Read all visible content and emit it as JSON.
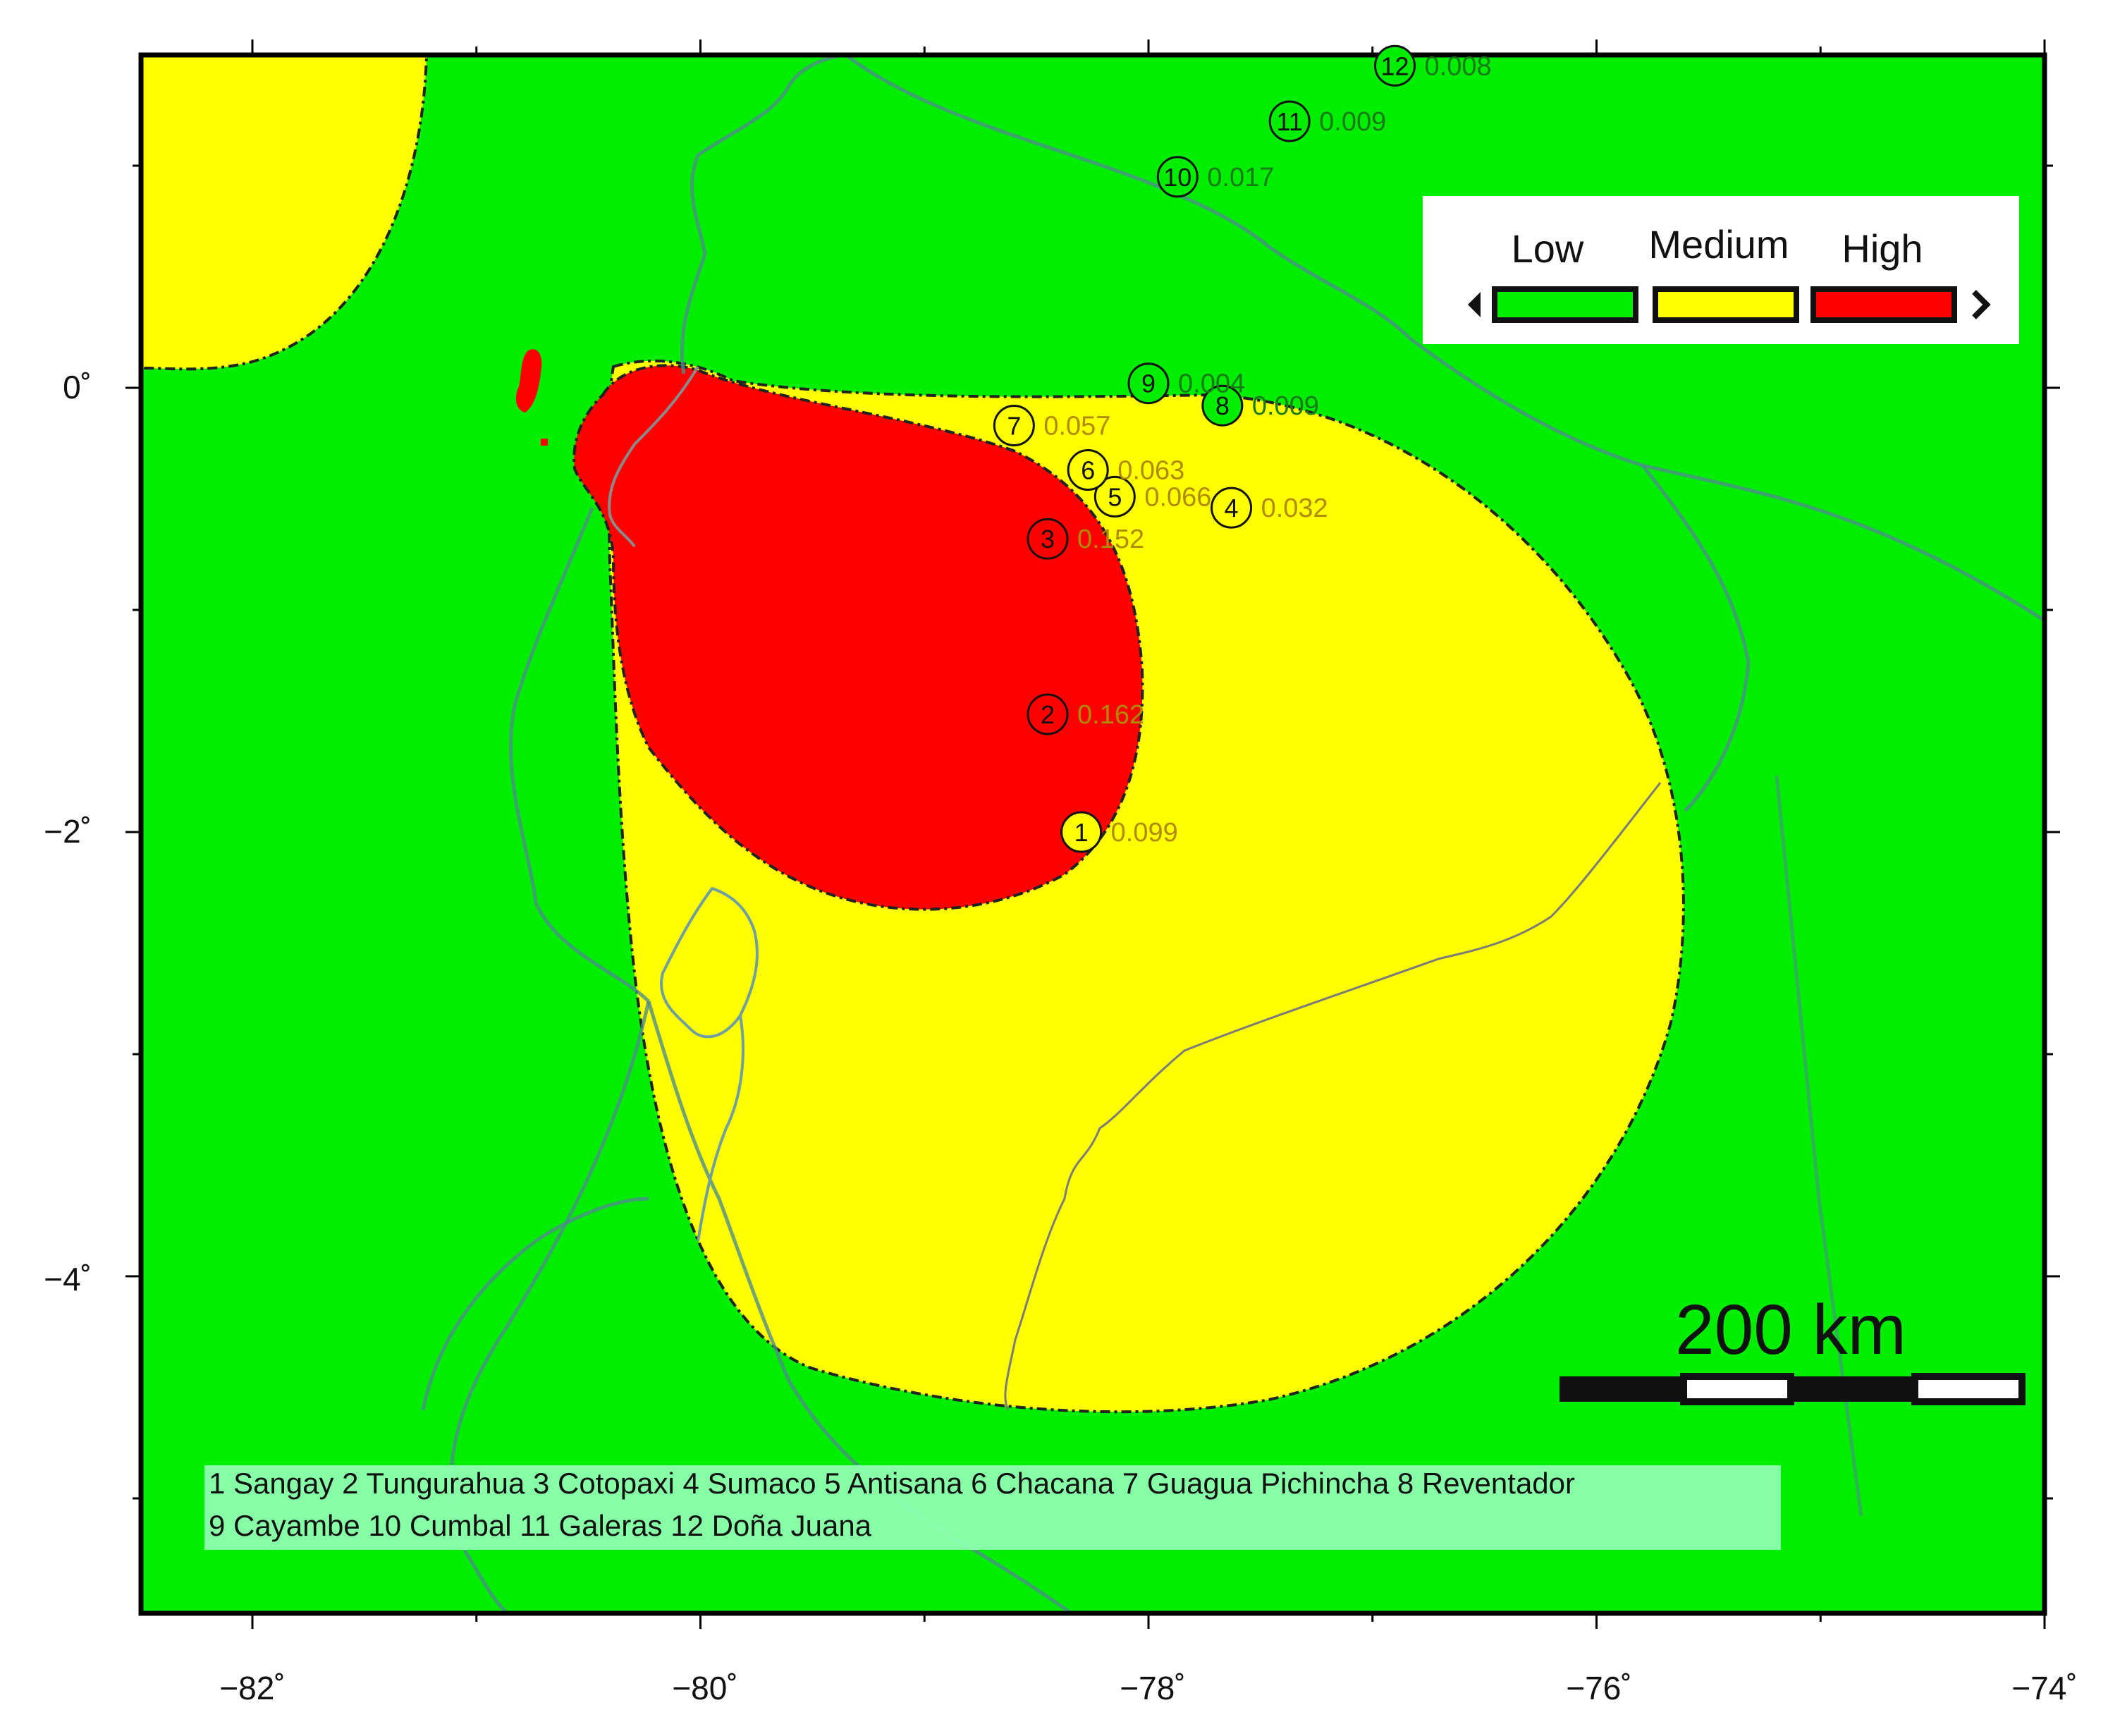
{
  "map": {
    "x_ticks": [
      "−82˚",
      "−80˚",
      "−78˚",
      "−76˚",
      "−74˚"
    ],
    "y_ticks": [
      "0˚",
      "−2˚",
      "−4˚"
    ],
    "legend": {
      "items": [
        {
          "label": "Low",
          "color": "#00ee00"
        },
        {
          "label": "Medium",
          "color": "#ffff00"
        },
        {
          "label": "High",
          "color": "#ff0000"
        }
      ]
    },
    "scale_bar": {
      "label": "200 km"
    },
    "volcano_key": {
      "line1": "1 Sangay 2 Tungurahua 3 Cotopaxi 4 Sumaco 5 Antisana 6 Chacana 7 Guagua Pichincha 8 Reventador",
      "line2": "9 Cayambe 10 Cumbal 11 Galeras 12 Doña Juana"
    },
    "volcanoes": [
      {
        "id": "1",
        "value": "0.099",
        "lon": -78.3,
        "lat": -2.0,
        "zone": "medium"
      },
      {
        "id": "2",
        "value": "0.162",
        "lon": -78.45,
        "lat": -1.47,
        "zone": "high"
      },
      {
        "id": "3",
        "value": "0.152",
        "lon": -78.45,
        "lat": -0.68,
        "zone": "high"
      },
      {
        "id": "4",
        "value": "0.032",
        "lon": -77.63,
        "lat": -0.54,
        "zone": "medium"
      },
      {
        "id": "5",
        "value": "0.066",
        "lon": -78.15,
        "lat": -0.49,
        "zone": "medium"
      },
      {
        "id": "6",
        "value": "0.063",
        "lon": -78.27,
        "lat": -0.37,
        "zone": "medium"
      },
      {
        "id": "7",
        "value": "0.057",
        "lon": -78.6,
        "lat": -0.17,
        "zone": "medium"
      },
      {
        "id": "8",
        "value": "0.009",
        "lon": -77.67,
        "lat": -0.08,
        "zone": "low"
      },
      {
        "id": "9",
        "value": "0.004",
        "lon": -78.0,
        "lat": 0.02,
        "zone": "low"
      },
      {
        "id": "10",
        "value": "0.017",
        "lon": -77.87,
        "lat": 0.95,
        "zone": "low"
      },
      {
        "id": "11",
        "value": "0.009",
        "lon": -77.37,
        "lat": 1.2,
        "zone": "low"
      },
      {
        "id": "12",
        "value": "0.008",
        "lon": -76.9,
        "lat": 1.45,
        "zone": "low"
      }
    ],
    "colors": {
      "low": "#00ee00",
      "medium": "#ffff00",
      "high": "#ff0000",
      "boundary": "#5a8a8a",
      "key_box": "#8effb0"
    }
  }
}
